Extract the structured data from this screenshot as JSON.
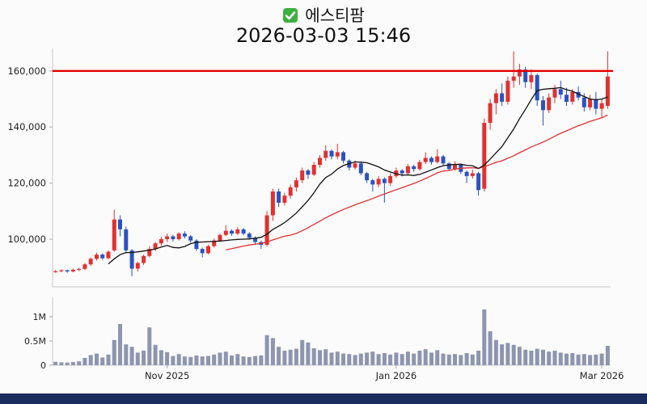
{
  "header": {
    "stock_name": "에스티팜",
    "timestamp": "2026-03-03 15:46",
    "checkbox_checked": true
  },
  "colors": {
    "up": "#e03131",
    "down": "#2a52c2",
    "level_line": "#e60000",
    "volume": "#8d95af",
    "ma_short": "#111111",
    "ma_long": "#e03131",
    "checkbox": "#3db03d",
    "footer_bar": "#1b2d5e",
    "axis_line": "#c9c9c9",
    "axis_text": "#222222"
  },
  "chart_data": {
    "type": "candlestick",
    "title": "에스티팜",
    "subtitle": "2026-03-03 15:46",
    "candles_format": [
      "open",
      "high",
      "low",
      "close",
      "volume"
    ],
    "price_axis": {
      "min": 83000,
      "max": 168000,
      "ticks": [
        {
          "value": 100000,
          "label": "100,000"
        },
        {
          "value": 120000,
          "label": "120,000"
        },
        {
          "value": 140000,
          "label": "140,000"
        },
        {
          "value": 160000,
          "label": "160,000"
        }
      ]
    },
    "volume_axis": {
      "max": 1400000,
      "ticks": [
        {
          "value": 0,
          "label": "0"
        },
        {
          "value": 500000,
          "label": "0.5M"
        },
        {
          "value": 1000000,
          "label": "1M"
        }
      ]
    },
    "x_ticks": [
      {
        "index": 19,
        "label": "Nov 2025"
      },
      {
        "index": 58,
        "label": "Jan 2026"
      },
      {
        "index": 93,
        "label": "Mar 2026"
      }
    ],
    "horizontal_line": {
      "value": 160000
    },
    "ma_short": {
      "period": 10
    },
    "ma_long": {
      "period": 30
    },
    "candles": [
      [
        88400,
        89000,
        88000,
        88600,
        70000
      ],
      [
        88600,
        89300,
        88200,
        88900,
        60000
      ],
      [
        88900,
        89100,
        88000,
        88500,
        55000
      ],
      [
        88500,
        89500,
        88200,
        89100,
        65000
      ],
      [
        89100,
        89800,
        88600,
        89400,
        80000
      ],
      [
        89400,
        91500,
        89000,
        91000,
        150000
      ],
      [
        91000,
        93500,
        90500,
        93000,
        210000
      ],
      [
        93000,
        95200,
        92400,
        94500,
        240000
      ],
      [
        94500,
        95000,
        92600,
        93200,
        160000
      ],
      [
        93200,
        96000,
        92800,
        95500,
        220000
      ],
      [
        96000,
        110500,
        95500,
        107000,
        520000
      ],
      [
        107000,
        108500,
        101000,
        103500,
        850000
      ],
      [
        103500,
        104500,
        95000,
        96000,
        430000
      ],
      [
        96000,
        96500,
        86800,
        89500,
        380000
      ],
      [
        89500,
        92000,
        88500,
        91500,
        260000
      ],
      [
        91500,
        94500,
        90800,
        94000,
        300000
      ],
      [
        94000,
        97500,
        93500,
        96500,
        780000
      ],
      [
        96500,
        99000,
        95800,
        98500,
        420000
      ],
      [
        98500,
        100800,
        97600,
        100000,
        310000
      ],
      [
        100000,
        102000,
        99000,
        101000,
        270000
      ],
      [
        101000,
        101500,
        99200,
        100000,
        190000
      ],
      [
        100000,
        102500,
        99500,
        102000,
        230000
      ],
      [
        102000,
        102800,
        100300,
        101000,
        180000
      ],
      [
        101000,
        101500,
        98800,
        99500,
        170000
      ],
      [
        99500,
        100000,
        95800,
        96500,
        200000
      ],
      [
        96500,
        97000,
        93500,
        95000,
        180000
      ],
      [
        95000,
        98000,
        94600,
        97500,
        190000
      ],
      [
        97500,
        100200,
        97000,
        99500,
        220000
      ],
      [
        99500,
        102000,
        99000,
        101500,
        260000
      ],
      [
        101500,
        105000,
        101000,
        103000,
        280000
      ],
      [
        103000,
        103500,
        101200,
        102000,
        200000
      ],
      [
        102000,
        104200,
        101500,
        103500,
        230000
      ],
      [
        103500,
        104000,
        101400,
        102000,
        180000
      ],
      [
        102000,
        102500,
        99800,
        100500,
        170000
      ],
      [
        100500,
        101000,
        98000,
        99000,
        190000
      ],
      [
        99000,
        99500,
        96500,
        98000,
        200000
      ],
      [
        98000,
        110000,
        97500,
        108500,
        620000
      ],
      [
        108500,
        118000,
        106500,
        117000,
        560000
      ],
      [
        117000,
        118000,
        111500,
        113000,
        380000
      ],
      [
        113000,
        116500,
        112000,
        115500,
        300000
      ],
      [
        115500,
        119500,
        114500,
        118500,
        320000
      ],
      [
        118500,
        122000,
        117000,
        121000,
        340000
      ],
      [
        121000,
        125500,
        120000,
        124500,
        520000
      ],
      [
        124500,
        125000,
        121500,
        123000,
        470000
      ],
      [
        123000,
        127500,
        122500,
        126500,
        350000
      ],
      [
        126500,
        130000,
        125500,
        129000,
        310000
      ],
      [
        129000,
        133500,
        128000,
        131500,
        330000
      ],
      [
        131500,
        132000,
        128500,
        129500,
        260000
      ],
      [
        129500,
        134000,
        128500,
        131000,
        280000
      ],
      [
        131000,
        131500,
        127000,
        128000,
        240000
      ],
      [
        128000,
        128500,
        124500,
        125500,
        230000
      ],
      [
        125500,
        128000,
        124800,
        127000,
        210000
      ],
      [
        127000,
        127500,
        122800,
        123500,
        240000
      ],
      [
        123500,
        124000,
        120000,
        121000,
        260000
      ],
      [
        121000,
        121500,
        117000,
        119500,
        280000
      ],
      [
        119500,
        122500,
        118500,
        121500,
        230000
      ],
      [
        121500,
        122000,
        113000,
        120000,
        250000
      ],
      [
        120000,
        123500,
        119000,
        122500,
        220000
      ],
      [
        122500,
        125500,
        121800,
        124500,
        260000
      ],
      [
        124500,
        125000,
        122400,
        123500,
        230000
      ],
      [
        123500,
        126800,
        123000,
        126000,
        280000
      ],
      [
        126000,
        126500,
        124000,
        125000,
        240000
      ],
      [
        125000,
        128200,
        124500,
        127500,
        300000
      ],
      [
        127500,
        131000,
        126800,
        129000,
        330000
      ],
      [
        129000,
        129500,
        126600,
        127500,
        260000
      ],
      [
        127500,
        132000,
        127000,
        129500,
        310000
      ],
      [
        129500,
        130000,
        126200,
        127000,
        240000
      ],
      [
        127000,
        127500,
        124300,
        125000,
        220000
      ],
      [
        125000,
        127800,
        124400,
        126500,
        230000
      ],
      [
        126500,
        127000,
        123200,
        124000,
        210000
      ],
      [
        124000,
        124500,
        120000,
        122500,
        250000
      ],
      [
        122500,
        124800,
        121600,
        123500,
        220000
      ],
      [
        123500,
        124000,
        115500,
        117500,
        300000
      ],
      [
        118000,
        143000,
        117000,
        141500,
        1150000
      ],
      [
        141500,
        150000,
        139000,
        148500,
        700000
      ],
      [
        148500,
        153500,
        144500,
        152000,
        520000
      ],
      [
        152000,
        155500,
        147500,
        149000,
        430000
      ],
      [
        149000,
        158000,
        148000,
        156500,
        460000
      ],
      [
        156500,
        167000,
        154000,
        158000,
        420000
      ],
      [
        158000,
        162500,
        155000,
        160500,
        380000
      ],
      [
        160500,
        161500,
        154000,
        156000,
        320000
      ],
      [
        156000,
        160500,
        153500,
        158500,
        300000
      ],
      [
        158500,
        159000,
        147500,
        149500,
        340000
      ],
      [
        149500,
        151000,
        140500,
        146000,
        320000
      ],
      [
        146000,
        152000,
        145000,
        150500,
        280000
      ],
      [
        150500,
        155000,
        148500,
        153500,
        300000
      ],
      [
        153500,
        156500,
        150000,
        151500,
        260000
      ],
      [
        151500,
        154000,
        147500,
        149000,
        240000
      ],
      [
        149000,
        153500,
        148000,
        152500,
        250000
      ],
      [
        152500,
        154500,
        149500,
        150500,
        220000
      ],
      [
        150500,
        152000,
        145500,
        147000,
        230000
      ],
      [
        147000,
        151500,
        146000,
        150000,
        210000
      ],
      [
        150000,
        152500,
        144500,
        146500,
        220000
      ],
      [
        146500,
        150000,
        143500,
        148500,
        240000
      ],
      [
        147500,
        167000,
        146500,
        158000,
        400000
      ]
    ]
  }
}
